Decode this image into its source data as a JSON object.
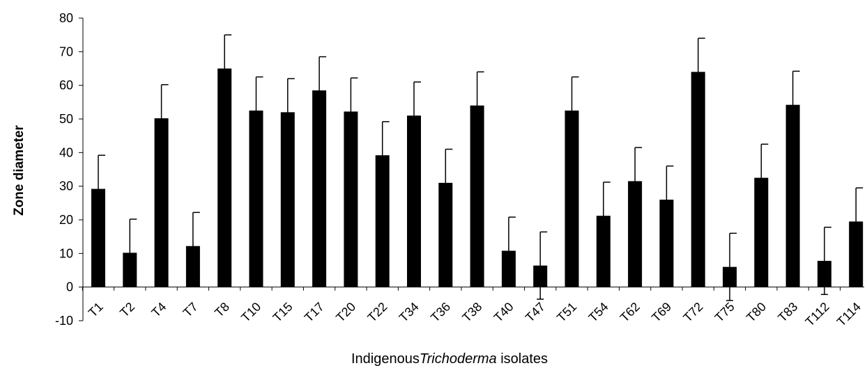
{
  "chart_data": {
    "type": "bar",
    "categories": [
      "T1",
      "T2",
      "T4",
      "T7",
      "T8",
      "T10",
      "T15",
      "T17",
      "T20",
      "T22",
      "T34",
      "T36",
      "T38",
      "T40",
      "T47",
      "T51",
      "T54",
      "T62",
      "T69",
      "T72",
      "T75",
      "T80",
      "T83",
      "T112",
      "T114"
    ],
    "values": [
      29.2,
      10.2,
      50.2,
      12.2,
      65.0,
      52.5,
      52.0,
      58.5,
      52.2,
      39.2,
      51.0,
      31.0,
      54.0,
      10.8,
      6.4,
      52.5,
      21.2,
      31.5,
      26.0,
      64.0,
      6.0,
      32.5,
      54.2,
      7.8,
      19.5
    ],
    "errors": [
      10,
      10,
      10,
      10,
      10,
      10,
      10,
      10,
      10,
      10,
      10,
      10,
      10,
      10,
      10,
      10,
      10,
      10,
      10,
      10,
      10,
      10,
      10,
      10,
      10
    ],
    "ylim": [
      -10,
      80
    ],
    "yticks": [
      -10,
      0,
      10,
      20,
      30,
      40,
      50,
      60,
      70,
      80
    ],
    "ylabel": "Zone diameter",
    "xlabel_prefix": "Indigenous",
    "xlabel_italic": "Trichoderma",
    "xlabel_suffix": " isolates",
    "bar_color": "#000000",
    "grid": false,
    "legend": "none"
  }
}
